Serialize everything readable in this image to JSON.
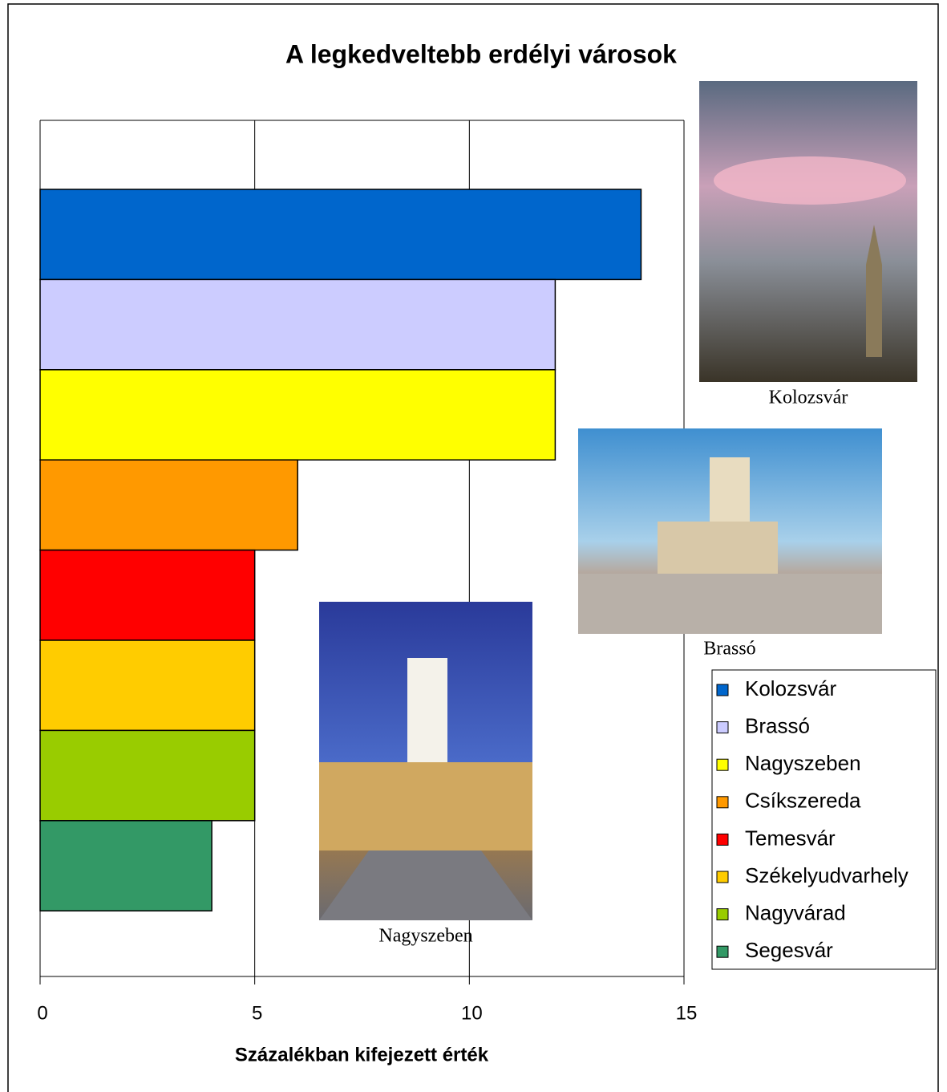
{
  "chart_data": {
    "type": "barh",
    "title": "A legkedveltebb erdélyi városok",
    "x_label": "Százalékban kifejezett érték",
    "categories": [
      "Kolozsvár",
      "Brassó",
      "Nagyszeben",
      "Csíkszereda",
      "Temesvár",
      "Székelyudvarhely",
      "Nagyvárad",
      "Segesvár"
    ],
    "values": [
      14,
      12,
      12,
      6,
      5,
      5,
      5,
      4
    ],
    "colors": [
      "#0066cc",
      "#ccccff",
      "#ffff00",
      "#ff9900",
      "#ff0000",
      "#ffcc00",
      "#99cc00",
      "#339966"
    ],
    "xlim": [
      0,
      15
    ],
    "xticks": [
      0,
      5,
      10,
      15
    ],
    "grid": true,
    "legend": "right",
    "annotations": [
      "Kolozsvár",
      "Brassó",
      "Nagyszeben"
    ]
  }
}
